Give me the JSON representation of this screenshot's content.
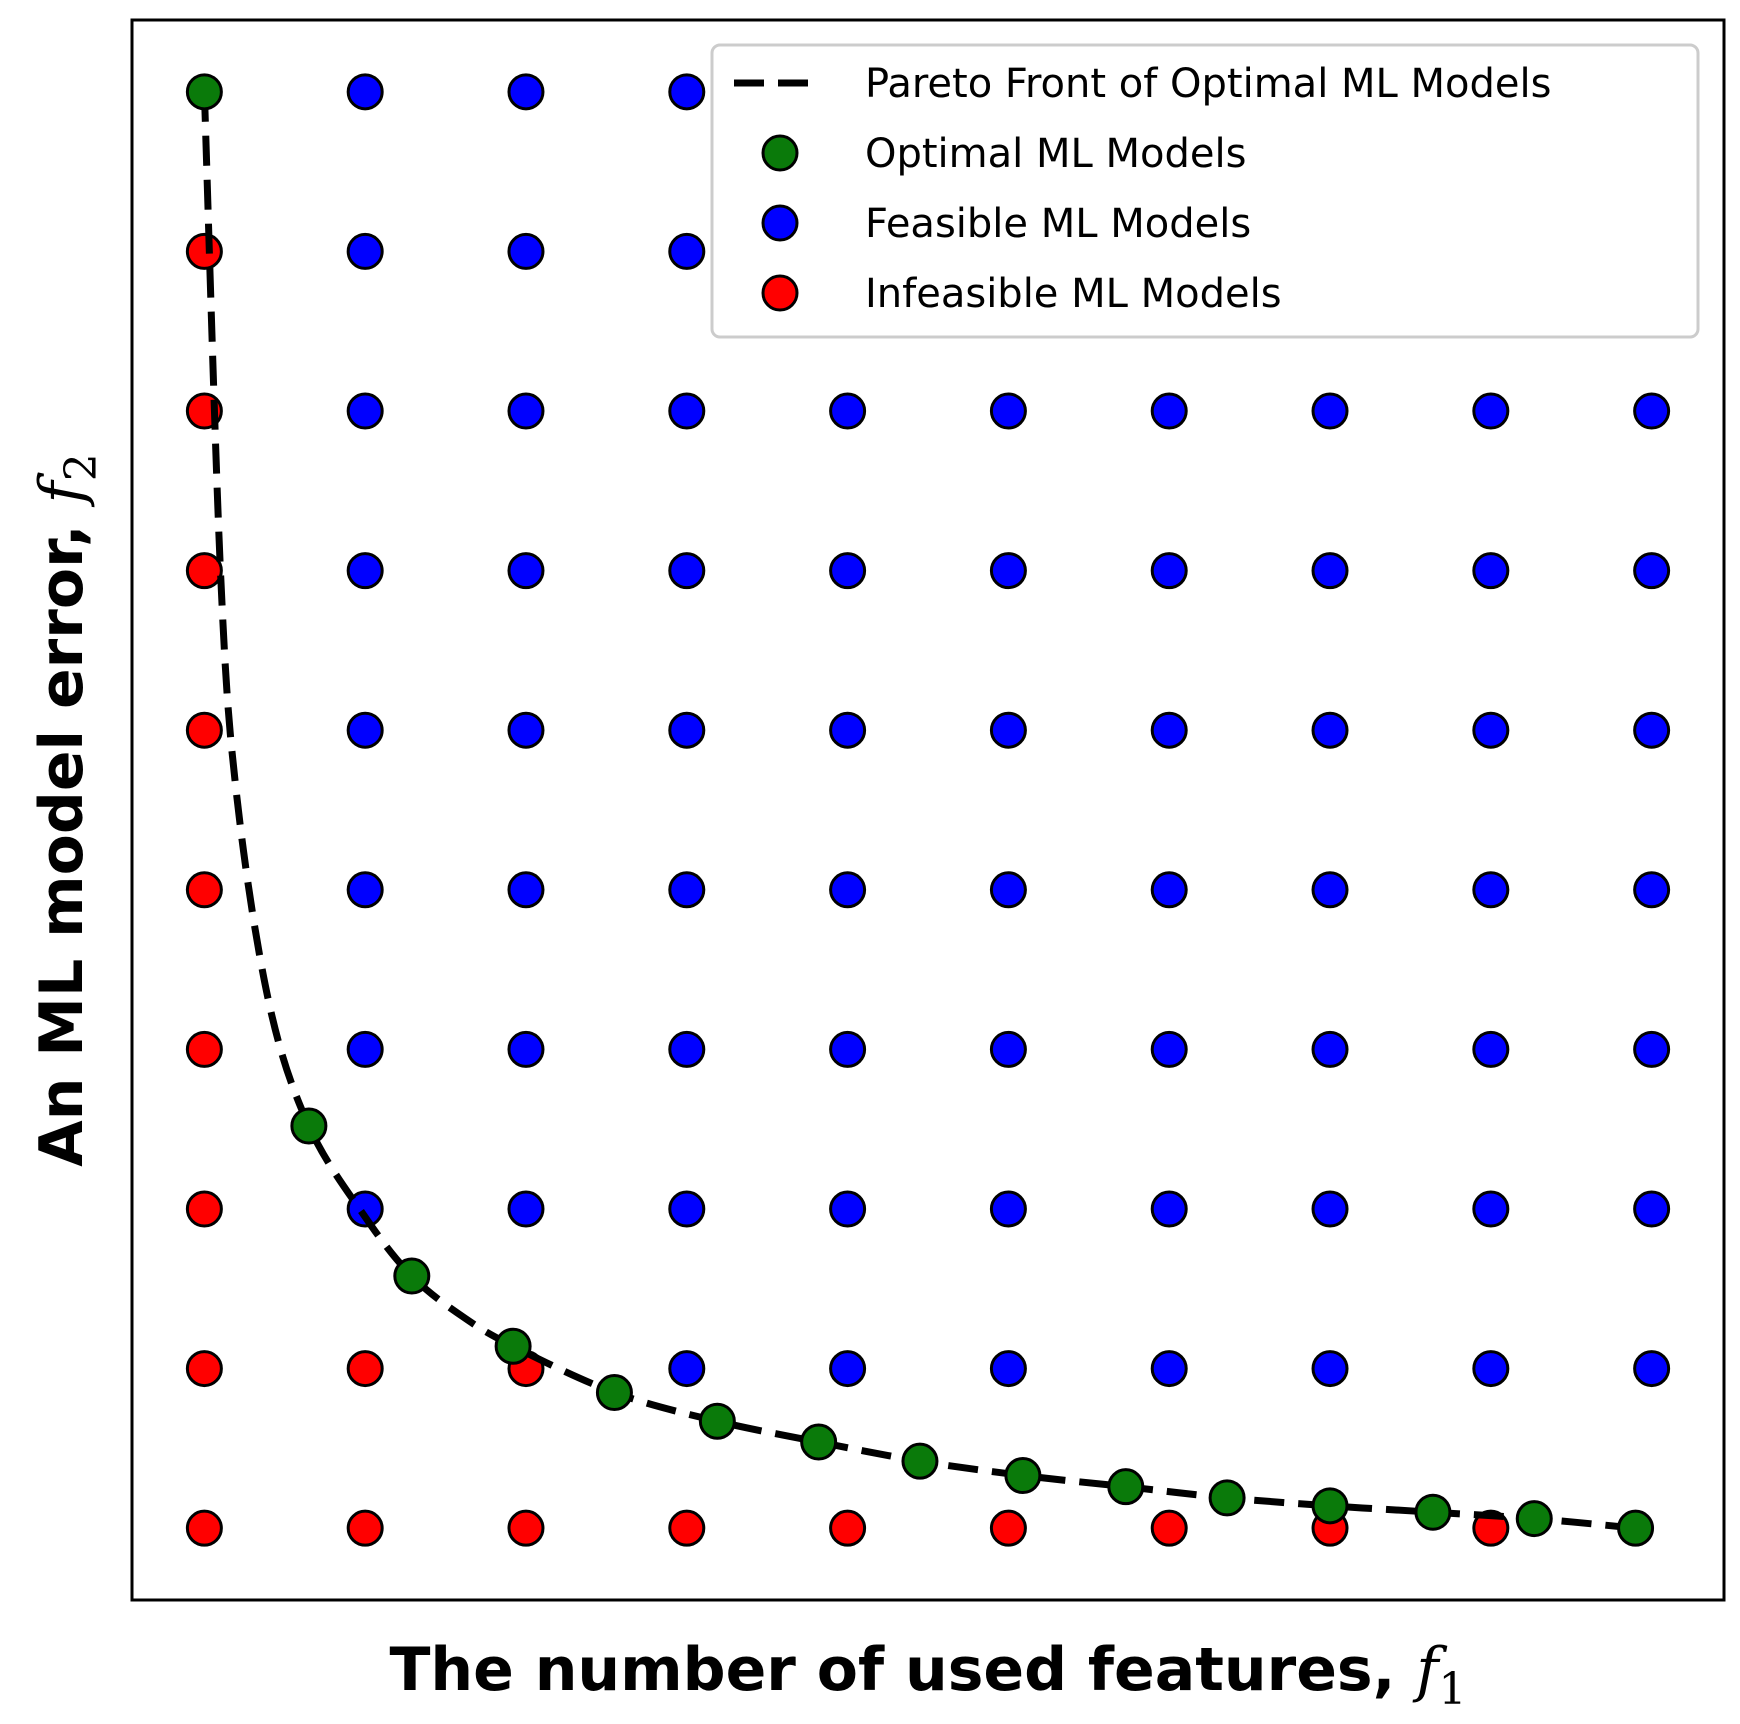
{
  "chart_data": {
    "type": "scatter",
    "xlabel": {
      "text": "The number of used features, ",
      "symbol": "f",
      "subscript": "1"
    },
    "ylabel": {
      "text": "An ML model error, ",
      "symbol": "f",
      "subscript": "2"
    },
    "xlim": [
      0.55,
      10.45
    ],
    "ylim": [
      0.55,
      10.45
    ],
    "ticks_visible": false,
    "grid": false,
    "legend": {
      "placement": "upper-right",
      "entries": [
        {
          "key": "pareto",
          "label": "Pareto Front of Optimal ML Models",
          "kind": "dashed-line",
          "color": "#000000"
        },
        {
          "key": "optimal",
          "label": "Optimal ML Models",
          "kind": "marker",
          "color": "#0a7a0a"
        },
        {
          "key": "feasible",
          "label": "Feasible ML Models",
          "kind": "marker",
          "color": "#0000ff"
        },
        {
          "key": "infeasible",
          "label": "Infeasible ML Models",
          "kind": "marker",
          "color": "#ff0000"
        }
      ]
    },
    "series": [
      {
        "key": "infeasible",
        "color": "#ff0000",
        "points": [
          [
            1,
            9
          ],
          [
            1,
            8
          ],
          [
            1,
            7
          ],
          [
            1,
            6
          ],
          [
            1,
            5
          ],
          [
            1,
            4
          ],
          [
            1,
            3
          ],
          [
            1,
            2
          ],
          [
            2,
            2
          ],
          [
            3,
            2
          ],
          [
            1,
            1
          ],
          [
            2,
            1
          ],
          [
            3,
            1
          ],
          [
            4,
            1
          ],
          [
            5,
            1
          ],
          [
            6,
            1
          ],
          [
            7,
            1
          ],
          [
            8,
            1
          ],
          [
            9,
            1
          ]
        ]
      },
      {
        "key": "feasible",
        "color": "#0000ff",
        "points": [
          [
            2,
            10
          ],
          [
            3,
            10
          ],
          [
            4,
            10
          ],
          [
            2,
            9
          ],
          [
            3,
            9
          ],
          [
            4,
            9
          ],
          [
            2,
            8
          ],
          [
            3,
            8
          ],
          [
            4,
            8
          ],
          [
            5,
            8
          ],
          [
            6,
            8
          ],
          [
            7,
            8
          ],
          [
            8,
            8
          ],
          [
            9,
            8
          ],
          [
            10,
            8
          ],
          [
            2,
            7
          ],
          [
            3,
            7
          ],
          [
            4,
            7
          ],
          [
            5,
            7
          ],
          [
            6,
            7
          ],
          [
            7,
            7
          ],
          [
            8,
            7
          ],
          [
            9,
            7
          ],
          [
            10,
            7
          ],
          [
            2,
            6
          ],
          [
            3,
            6
          ],
          [
            4,
            6
          ],
          [
            5,
            6
          ],
          [
            6,
            6
          ],
          [
            7,
            6
          ],
          [
            8,
            6
          ],
          [
            9,
            6
          ],
          [
            10,
            6
          ],
          [
            2,
            5
          ],
          [
            3,
            5
          ],
          [
            4,
            5
          ],
          [
            5,
            5
          ],
          [
            6,
            5
          ],
          [
            7,
            5
          ],
          [
            8,
            5
          ],
          [
            9,
            5
          ],
          [
            10,
            5
          ],
          [
            2,
            4
          ],
          [
            3,
            4
          ],
          [
            4,
            4
          ],
          [
            5,
            4
          ],
          [
            6,
            4
          ],
          [
            7,
            4
          ],
          [
            8,
            4
          ],
          [
            9,
            4
          ],
          [
            10,
            4
          ],
          [
            2,
            3
          ],
          [
            3,
            3
          ],
          [
            4,
            3
          ],
          [
            5,
            3
          ],
          [
            6,
            3
          ],
          [
            7,
            3
          ],
          [
            8,
            3
          ],
          [
            9,
            3
          ],
          [
            10,
            3
          ],
          [
            4,
            2
          ],
          [
            5,
            2
          ],
          [
            6,
            2
          ],
          [
            7,
            2
          ],
          [
            8,
            2
          ],
          [
            9,
            2
          ],
          [
            10,
            2
          ]
        ]
      },
      {
        "key": "optimal",
        "color": "#0a7a0a",
        "points": [
          [
            1,
            10
          ],
          [
            1.65,
            3.52
          ],
          [
            2.29,
            2.58
          ],
          [
            2.92,
            2.14
          ],
          [
            3.55,
            1.85
          ],
          [
            4.19,
            1.67
          ],
          [
            4.82,
            1.54
          ],
          [
            5.45,
            1.42
          ],
          [
            6.09,
            1.33
          ],
          [
            6.73,
            1.26
          ],
          [
            7.36,
            1.19
          ],
          [
            8,
            1.14
          ],
          [
            8.64,
            1.1
          ],
          [
            9.27,
            1.06
          ],
          [
            9.9,
            1
          ]
        ]
      },
      {
        "key": "pareto",
        "color": "#000000",
        "line": [
          [
            1,
            10
          ],
          [
            1.1,
            7
          ],
          [
            1.2,
            5.6
          ],
          [
            1.4,
            4.3
          ],
          [
            1.65,
            3.52
          ],
          [
            2,
            2.95
          ],
          [
            2.29,
            2.58
          ],
          [
            2.6,
            2.33
          ],
          [
            2.92,
            2.14
          ],
          [
            3.55,
            1.85
          ],
          [
            4.19,
            1.67
          ],
          [
            4.82,
            1.54
          ],
          [
            5.45,
            1.42
          ],
          [
            6.09,
            1.33
          ],
          [
            6.73,
            1.26
          ],
          [
            7.36,
            1.19
          ],
          [
            8,
            1.14
          ],
          [
            8.64,
            1.1
          ],
          [
            9.27,
            1.06
          ],
          [
            9.9,
            1
          ]
        ]
      }
    ]
  }
}
